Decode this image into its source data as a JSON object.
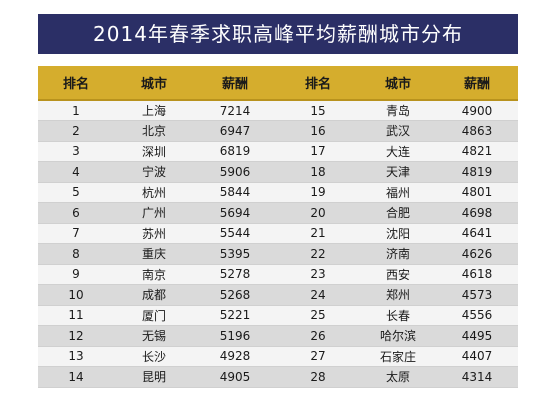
{
  "title": "2014年春季求职高峰平均薪酬城市分布",
  "headers": [
    "排名",
    "城市",
    "薪酬",
    "排名",
    "城市",
    "薪酬"
  ],
  "rows": [
    [
      "1",
      "上海",
      "7214",
      "15",
      "青岛",
      "4900"
    ],
    [
      "2",
      "北京",
      "6947",
      "16",
      "武汉",
      "4863"
    ],
    [
      "3",
      "深圳",
      "6819",
      "17",
      "大连",
      "4821"
    ],
    [
      "4",
      "宁波",
      "5906",
      "18",
      "天津",
      "4819"
    ],
    [
      "5",
      "杭州",
      "5844",
      "19",
      "福州",
      "4801"
    ],
    [
      "6",
      "广州",
      "5694",
      "20",
      "合肥",
      "4698"
    ],
    [
      "7",
      "苏州",
      "5544",
      "21",
      "沈阳",
      "4641"
    ],
    [
      "8",
      "重庆",
      "5395",
      "22",
      "济南",
      "4626"
    ],
    [
      "9",
      "南京",
      "5278",
      "23",
      "西安",
      "4618"
    ],
    [
      "10",
      "成都",
      "5268",
      "24",
      "郑州",
      "4573"
    ],
    [
      "11",
      "厦门",
      "5221",
      "25",
      "长春",
      "4556"
    ],
    [
      "12",
      "无锡",
      "5196",
      "26",
      "哈尔滨",
      "4495"
    ],
    [
      "13",
      "长沙",
      "4928",
      "27",
      "石家庄",
      "4407"
    ],
    [
      "14",
      "昆明",
      "4905",
      "28",
      "太原",
      "4314"
    ]
  ],
  "colors": {
    "title_bg": "#2b2f66",
    "header_bg": "#d5ad2d",
    "row_light": "#f4f4f4",
    "row_dark": "#dadada"
  }
}
